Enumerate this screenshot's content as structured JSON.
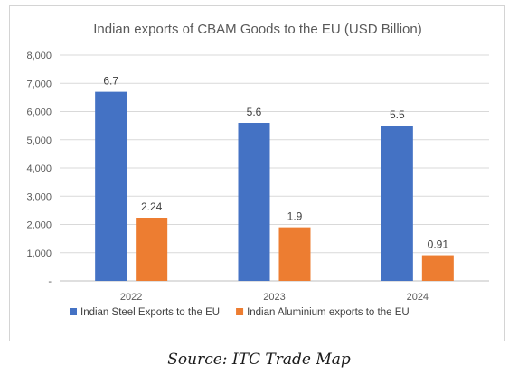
{
  "chart_data": {
    "type": "bar",
    "title": "Indian exports of CBAM Goods to the EU (USD Billion)",
    "categories": [
      "2022",
      "2023",
      "2024"
    ],
    "series": [
      {
        "name": "Indian Steel Exports to the EU",
        "values": [
          6.7,
          5.6,
          5.5
        ],
        "labels": [
          "6.7",
          "5.6",
          "5.5"
        ],
        "color": "#4472C4"
      },
      {
        "name": "Indian Aluminium exports to the EU",
        "values": [
          2.24,
          1.9,
          0.91
        ],
        "labels": [
          "2.24",
          "1.9",
          "0.91"
        ],
        "color": "#ED7D31"
      }
    ],
    "ylim": [
      0,
      8000
    ],
    "yticks": [
      "-",
      "1,000",
      "2,000",
      "3,000",
      "4,000",
      "5,000",
      "6,000",
      "7,000",
      "8,000"
    ],
    "y_scale_factor": 1000,
    "grid": true,
    "legend": "bottom",
    "xlabel": "",
    "ylabel": ""
  },
  "source": "Source: ITC Trade Map"
}
